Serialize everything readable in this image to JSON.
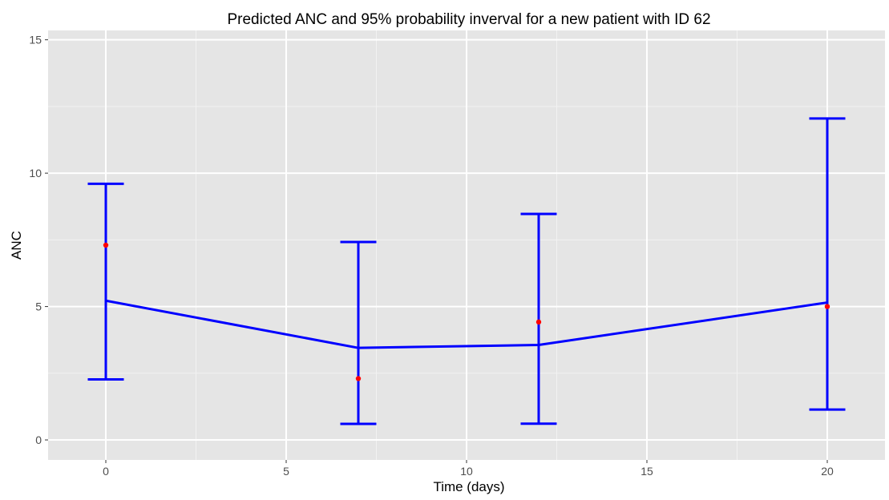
{
  "colors": {
    "panel_background": "#e5e5e5",
    "grid_major": "#ffffff",
    "grid_minor": "#f2f2f2",
    "prediction_line": "#0000ff",
    "error_bar": "#0000ff",
    "observed_point": "#ff0000",
    "tick_label": "#4d4d4d",
    "text": "#000000"
  },
  "chart_data": {
    "type": "line",
    "title": "Predicted ANC and 95% probability inverval for a new patient with ID 62",
    "xlabel": "Time (days)",
    "ylabel": "ANC",
    "xlim": [
      -1.6,
      21.6
    ],
    "ylim": [
      -0.75,
      15.35
    ],
    "x_ticks": [
      0,
      5,
      10,
      15,
      20
    ],
    "y_ticks": [
      0,
      5,
      10,
      15
    ],
    "x_minor_ticks": [
      2.5,
      7.5,
      12.5,
      17.5
    ],
    "y_minor_ticks": [
      2.5,
      7.5,
      12.5
    ],
    "grid": true,
    "legend": "none",
    "series": [
      {
        "kind": "line",
        "x": [
          0,
          7,
          12,
          20
        ],
        "y": [
          5.22,
          3.45,
          3.56,
          5.15
        ]
      },
      {
        "kind": "errorbar",
        "x": [
          0,
          7,
          12,
          20
        ],
        "lower": [
          2.27,
          0.6,
          0.61,
          1.14
        ],
        "upper": [
          9.6,
          7.42,
          8.47,
          12.05
        ]
      },
      {
        "kind": "points",
        "x": [
          0,
          7,
          12,
          20
        ],
        "y": [
          7.3,
          2.3,
          4.42,
          5.0
        ]
      }
    ]
  }
}
